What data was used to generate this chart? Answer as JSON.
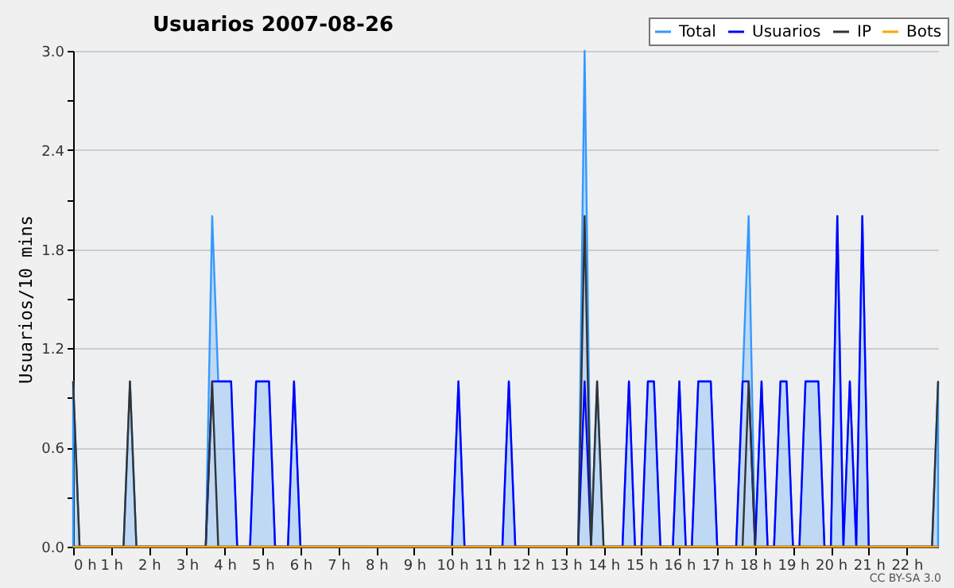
{
  "chart_data": {
    "type": "line",
    "title": "Usuarios  2007-08-26",
    "ylabel": "Usuarios/10 mins",
    "annotations": [
      "CC BY-SA 3.0"
    ],
    "xlim": [
      0,
      22.83
    ],
    "xticks": [
      {
        "value": 0,
        "label": "0 h"
      },
      {
        "value": 1,
        "label": "1 h"
      },
      {
        "value": 2,
        "label": "2 h"
      },
      {
        "value": 3,
        "label": "3 h"
      },
      {
        "value": 4,
        "label": "4 h"
      },
      {
        "value": 5,
        "label": "5 h"
      },
      {
        "value": 6,
        "label": "6 h"
      },
      {
        "value": 7,
        "label": "7 h"
      },
      {
        "value": 8,
        "label": "8 h"
      },
      {
        "value": 9,
        "label": "9 h"
      },
      {
        "value": 10,
        "label": "10 h"
      },
      {
        "value": 11,
        "label": "11 h"
      },
      {
        "value": 12,
        "label": "12 h"
      },
      {
        "value": 13,
        "label": "13 h"
      },
      {
        "value": 14,
        "label": "14 h"
      },
      {
        "value": 15,
        "label": "15 h"
      },
      {
        "value": 16,
        "label": "16 h"
      },
      {
        "value": 17,
        "label": "17 h"
      },
      {
        "value": 18,
        "label": "18 h"
      },
      {
        "value": 19,
        "label": "19 h"
      },
      {
        "value": 20,
        "label": "20 h"
      },
      {
        "value": 21,
        "label": "21 h"
      },
      {
        "value": 22,
        "label": "22 h"
      }
    ],
    "ylim": [
      0,
      3
    ],
    "yticks": [
      {
        "value": 0,
        "label": "0.0"
      },
      {
        "value": 0.3,
        "label": null
      },
      {
        "value": 0.6,
        "label": "0.6"
      },
      {
        "value": 0.9,
        "label": null
      },
      {
        "value": 1.2,
        "label": "1.2"
      },
      {
        "value": 1.5,
        "label": null
      },
      {
        "value": 1.8,
        "label": "1.8"
      },
      {
        "value": 2.1,
        "label": null
      },
      {
        "value": 2.4,
        "label": "2.4"
      },
      {
        "value": 2.7,
        "label": null
      },
      {
        "value": 3,
        "label": "3.0"
      }
    ],
    "grid": "y",
    "legend": "top right",
    "line_style": "solid",
    "series": [
      {
        "name": "Total",
        "type": "area",
        "color": "#3399ff",
        "x": [
          0,
          0.17,
          1.33,
          1.5,
          1.67,
          3.5,
          3.67,
          3.83,
          4,
          4.17,
          4.33,
          4.67,
          4.83,
          5,
          5.17,
          5.33,
          5.67,
          5.83,
          6,
          10,
          10.17,
          10.33,
          11.33,
          11.5,
          11.67,
          13.33,
          13.5,
          13.67,
          13.83,
          14,
          14.5,
          14.67,
          14.83,
          15,
          15.17,
          15.33,
          15.5,
          15.83,
          16,
          16.17,
          16.33,
          16.5,
          16.67,
          16.83,
          17,
          17.5,
          17.67,
          17.83,
          18,
          18.17,
          18.33,
          18.5,
          18.67,
          18.83,
          19,
          19.17,
          19.33,
          19.5,
          19.67,
          19.83,
          20,
          20.17,
          20.33,
          20.5,
          20.67,
          20.83,
          21,
          22.67,
          22.83
        ],
        "values": [
          1,
          0,
          0,
          1,
          0,
          0,
          2,
          1,
          1,
          1,
          0,
          0,
          1,
          1,
          1,
          0,
          0,
          1,
          0,
          0,
          1,
          0,
          0,
          1,
          0,
          0,
          3,
          0,
          1,
          0,
          0,
          1,
          0,
          0,
          1,
          1,
          0,
          0,
          1,
          0,
          0,
          1,
          1,
          1,
          0,
          0,
          1,
          2,
          0,
          1,
          0,
          0,
          1,
          1,
          0,
          0,
          1,
          1,
          1,
          0,
          0,
          2,
          0,
          1,
          0,
          2,
          0,
          0,
          1
        ]
      },
      {
        "name": "Usuarios",
        "color": "#0000ff",
        "x": [
          0,
          3.5,
          3.67,
          3.83,
          4,
          4.17,
          4.33,
          4.67,
          4.83,
          5,
          5.17,
          5.33,
          5.67,
          5.83,
          6,
          10,
          10.17,
          10.33,
          11.33,
          11.5,
          11.67,
          13.33,
          13.5,
          13.67,
          14.5,
          14.67,
          14.83,
          15,
          15.17,
          15.33,
          15.5,
          15.83,
          16,
          16.17,
          16.33,
          16.5,
          16.67,
          16.83,
          17,
          17.5,
          17.67,
          17.83,
          18,
          18.17,
          18.33,
          18.5,
          18.67,
          18.83,
          19,
          19.17,
          19.33,
          19.5,
          19.67,
          19.83,
          20,
          20.17,
          20.33,
          20.5,
          20.67,
          20.83,
          21,
          22.83
        ],
        "values": [
          0,
          0,
          1,
          1,
          1,
          1,
          0,
          0,
          1,
          1,
          1,
          0,
          0,
          1,
          0,
          0,
          1,
          0,
          0,
          1,
          0,
          0,
          1,
          0,
          0,
          1,
          0,
          0,
          1,
          1,
          0,
          0,
          1,
          0,
          0,
          1,
          1,
          1,
          0,
          0,
          1,
          1,
          0,
          1,
          0,
          0,
          1,
          1,
          0,
          0,
          1,
          1,
          1,
          0,
          0,
          2,
          0,
          1,
          0,
          2,
          0,
          0
        ]
      },
      {
        "name": "IP",
        "color": "#333333",
        "x": [
          0,
          0.17,
          1.33,
          1.5,
          1.67,
          3.5,
          3.67,
          3.83,
          13.33,
          13.5,
          13.67,
          13.83,
          14,
          17.67,
          17.83,
          18,
          22.67,
          22.83
        ],
        "values": [
          1,
          0,
          0,
          1,
          0,
          0,
          1,
          0,
          0,
          2,
          0,
          1,
          0,
          0,
          1,
          0,
          0,
          1
        ]
      },
      {
        "name": "Bots",
        "color": "#ffa500",
        "x": [
          0,
          22.83
        ],
        "values": [
          0,
          0
        ]
      }
    ]
  }
}
